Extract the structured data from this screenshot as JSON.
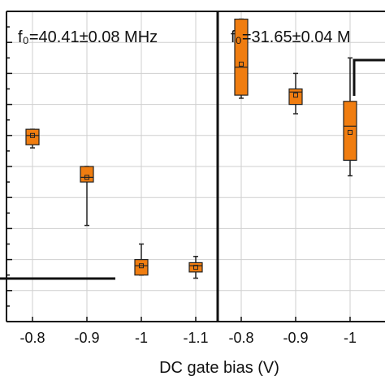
{
  "chart_data": {
    "type": "box",
    "xlabel": "DC gate bias (V)",
    "ylabel": "",
    "ylim": [
      0,
      10
    ],
    "grid": true,
    "colors": {
      "box": "#f07d10",
      "stroke": "#222222",
      "grid": "#cfcfcf"
    },
    "panels": [
      {
        "annotation": "f₀=40.41±0.08 MHz",
        "categories": [
          "-0.8",
          "-0.9",
          "-1",
          "-1.1"
        ],
        "boxes": [
          {
            "x": "-0.8",
            "whisker_low": 5.6,
            "q1": 5.7,
            "median": 6.0,
            "q3": 6.2,
            "whisker_high": 6.2,
            "mean": 6.0
          },
          {
            "x": "-0.9",
            "whisker_low": 3.1,
            "q1": 4.5,
            "median": 4.65,
            "q3": 5.0,
            "whisker_high": 5.0,
            "mean": 4.65
          },
          {
            "x": "-1",
            "whisker_low": 1.5,
            "q1": 1.5,
            "median": 1.8,
            "q3": 2.0,
            "whisker_high": 2.5,
            "mean": 1.8
          },
          {
            "x": "-1.1",
            "whisker_low": 1.4,
            "q1": 1.6,
            "median": 1.8,
            "q3": 1.9,
            "whisker_high": 2.1,
            "mean": 1.75
          }
        ]
      },
      {
        "annotation": "f₀=31.65±0.04 M",
        "categories": [
          "-0.8",
          "-0.9",
          "-1"
        ],
        "boxes": [
          {
            "x": "-0.8",
            "whisker_low": 7.2,
            "q1": 7.3,
            "median": 8.2,
            "q3": 9.75,
            "whisker_high": 9.75,
            "mean": 8.3
          },
          {
            "x": "-0.9",
            "whisker_low": 6.7,
            "q1": 7.0,
            "median": 7.4,
            "q3": 7.5,
            "whisker_high": 8.0,
            "mean": 7.3
          },
          {
            "x": "-1",
            "whisker_low": 4.7,
            "q1": 5.2,
            "median": 6.3,
            "q3": 7.1,
            "whisker_high": 8.5,
            "mean": 6.1
          }
        ]
      }
    ]
  }
}
